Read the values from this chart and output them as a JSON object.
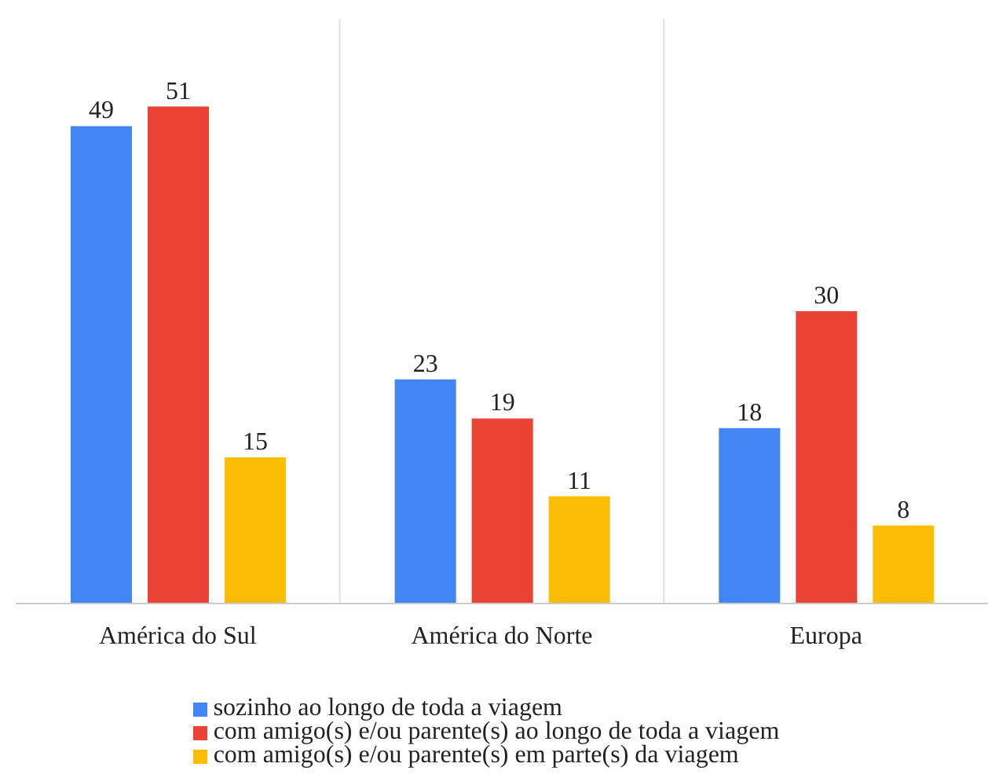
{
  "chart_data": {
    "type": "bar",
    "categories": [
      "América do Sul",
      "América do Norte",
      "Europa"
    ],
    "series": [
      {
        "name": "sozinho ao longo de toda a viagem",
        "color": "#4285f4",
        "values": [
          49,
          23,
          18
        ]
      },
      {
        "name": "com amigo(s) e/ou parente(s) ao longo de toda a viagem",
        "color": "#ea4335",
        "values": [
          51,
          19,
          30
        ]
      },
      {
        "name": "com amigo(s) e/ou parente(s) em parte(s) da viagem",
        "color": "#fbbc04",
        "values": [
          15,
          11,
          8
        ]
      }
    ],
    "data_labels": true,
    "grid": "x",
    "legend": "bottom"
  }
}
